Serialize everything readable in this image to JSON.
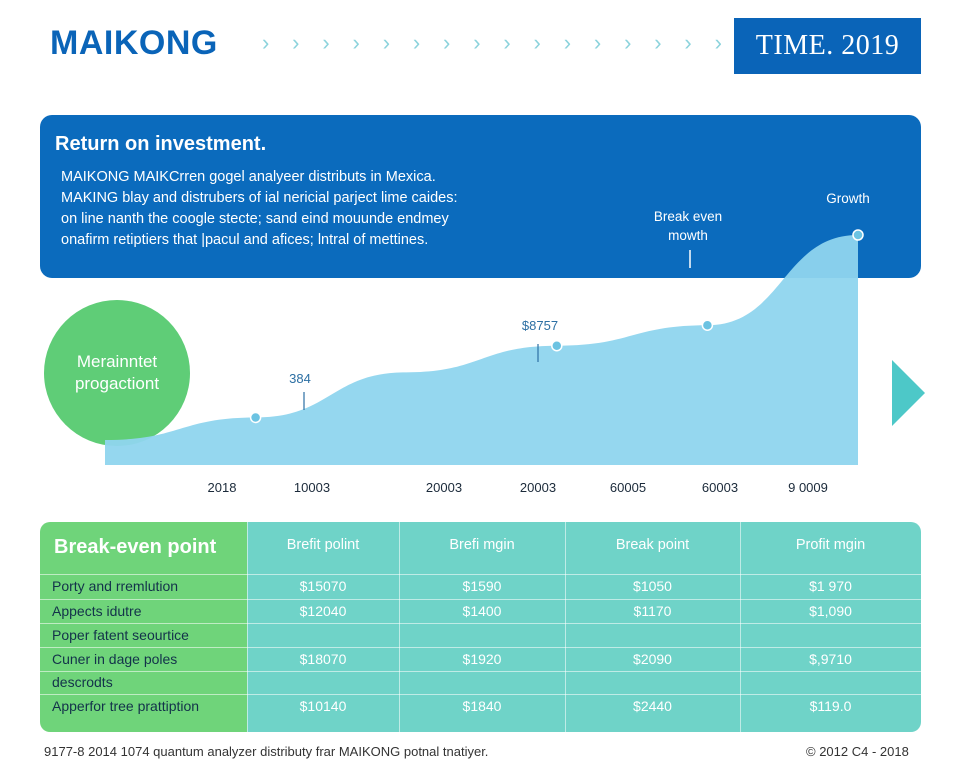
{
  "header": {
    "brand": "MAIKONG",
    "time_badge": "TIME. 2019",
    "chevron": "›"
  },
  "roi": {
    "title": "Return on investment.",
    "lines": [
      "MAIKONG MAIKCrren gogel analyeer distributs in Mexica.",
      "MAKING blay and distrubers of ial nericial parject lime caides:",
      "on line nanth the coogle stecte; sand eind mouunde endmey",
      "onafirm retiptiers that |pacul and afices; lntral of mettines."
    ]
  },
  "circle": {
    "line1": "Merainntet",
    "line2": "progactiont"
  },
  "chart_data": {
    "type": "area",
    "x_tick_labels": [
      "2018",
      "10003",
      "20003",
      "20003",
      "60005",
      "60003",
      "9 0009"
    ],
    "point_labels": [
      "384",
      "$8757",
      "Break even\nmowth",
      "Growth"
    ],
    "series": [
      {
        "values": [
          0.0,
          0.11,
          0.33,
          0.46,
          0.56,
          1.0
        ]
      }
    ],
    "colors": {
      "fill": "#8fd5ee",
      "marker": "#6cc3e2",
      "line": "#6fc9e8"
    }
  },
  "table": {
    "header_title": "Break-even point",
    "columns": [
      "Brefit polint",
      "Brefi mgin",
      "Break point",
      "Profit mgin"
    ],
    "rows": [
      {
        "label": "Porty and rremlution",
        "cells": [
          "$15070",
          "$1590",
          "$1050",
          "$1 970"
        ]
      },
      {
        "label": "Appects idutre",
        "cells": [
          "$12040",
          "$1400",
          "$1170",
          "$1,090"
        ]
      },
      {
        "label": "Poper fatent seourtice",
        "cells": [
          "",
          "",
          "",
          ""
        ]
      },
      {
        "label": "Cuner in dage poles",
        "cells": [
          "$18070",
          "$1920",
          "$2090",
          "$,9710"
        ]
      },
      {
        "label": "descrodts",
        "cells": [
          "",
          "",
          "",
          ""
        ]
      },
      {
        "label": "Apperfor tree prattiption",
        "cells": [
          "$10140",
          "$1840",
          "$2440",
          "$119.0"
        ]
      }
    ]
  },
  "footer": {
    "left": "9177-8 2014 1074 quantum analyzer distributy frar MAIKONG potnal tnatiyer.",
    "right": "© 2012 C4 - 2018"
  }
}
